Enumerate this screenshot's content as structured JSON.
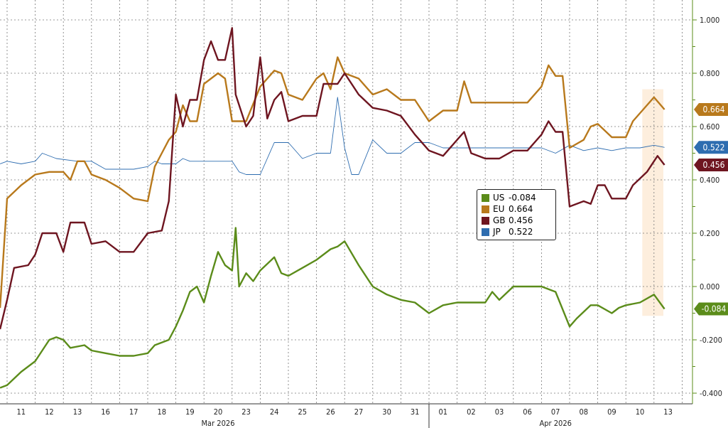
{
  "chart_data": {
    "type": "line",
    "title": "",
    "xlabel": "",
    "ylabel": "",
    "ylim": [
      -0.4,
      1.0
    ],
    "y_ticks": [
      "1.000",
      "0.800",
      "0.600",
      "0.400",
      "0.200",
      "0.000",
      "-0.200",
      "-0.400"
    ],
    "y_tick_values": [
      1.0,
      0.8,
      0.6,
      0.4,
      0.2,
      0.0,
      -0.2,
      -0.4
    ],
    "y_axis_side": "right",
    "grid": true,
    "legend_placement": "center-right",
    "x_days": [
      "03-11",
      "03-12",
      "03-13",
      "03-16",
      "03-17",
      "03-18",
      "03-19",
      "03-20",
      "03-23",
      "03-24",
      "03-25",
      "03-26",
      "03-27",
      "03-30",
      "03-31",
      "04-01",
      "04-02",
      "04-03",
      "04-06",
      "04-07",
      "04-08",
      "04-09",
      "04-10",
      "04-13"
    ],
    "x_tick_labels": [
      "11",
      "12",
      "13",
      "16",
      "17",
      "18",
      "19",
      "20",
      "23",
      "24",
      "25",
      "26",
      "27",
      "30",
      "31",
      "01",
      "02",
      "03",
      "06",
      "07",
      "08",
      "09",
      "10",
      "13"
    ],
    "months": [
      {
        "label": "Mar 2026",
        "from": "03-11",
        "to": "03-31"
      },
      {
        "label": "Apr 2026",
        "from": "04-01",
        "to": "04-13"
      }
    ],
    "highlight": {
      "from": "04-10 14:00",
      "to": "04-13 08:00",
      "ymin": -0.11,
      "ymax": 0.74,
      "color": "#fdeedd"
    },
    "series": [
      {
        "name": "US",
        "last": "-0.084",
        "color": "#5b8c1a",
        "width": 2.4,
        "points": [
          [
            "03-10 18:00",
            -0.38
          ],
          [
            "03-11 00:00",
            -0.37
          ],
          [
            "03-11 12:00",
            -0.32
          ],
          [
            "03-12 00:00",
            -0.28
          ],
          [
            "03-12 06:00",
            -0.24
          ],
          [
            "03-12 12:00",
            -0.2
          ],
          [
            "03-12 18:00",
            -0.19
          ],
          [
            "03-13 00:00",
            -0.2
          ],
          [
            "03-13 06:00",
            -0.23
          ],
          [
            "03-13 18:00",
            -0.22
          ],
          [
            "03-16 00:00",
            -0.24
          ],
          [
            "03-16 12:00",
            -0.25
          ],
          [
            "03-17 00:00",
            -0.26
          ],
          [
            "03-17 12:00",
            -0.26
          ],
          [
            "03-18 00:00",
            -0.25
          ],
          [
            "03-18 06:00",
            -0.22
          ],
          [
            "03-18 18:00",
            -0.2
          ],
          [
            "03-19 00:00",
            -0.15
          ],
          [
            "03-19 06:00",
            -0.09
          ],
          [
            "03-19 12:00",
            -0.02
          ],
          [
            "03-19 18:00",
            0.0
          ],
          [
            "03-20 00:00",
            -0.06
          ],
          [
            "03-20 06:00",
            0.04
          ],
          [
            "03-20 12:00",
            0.13
          ],
          [
            "03-20 18:00",
            0.08
          ],
          [
            "03-23 00:00",
            0.06
          ],
          [
            "03-23 03:00",
            0.22
          ],
          [
            "03-23 06:00",
            0.0
          ],
          [
            "03-23 12:00",
            0.05
          ],
          [
            "03-23 18:00",
            0.02
          ],
          [
            "03-24 00:00",
            0.06
          ],
          [
            "03-24 12:00",
            0.11
          ],
          [
            "03-24 18:00",
            0.05
          ],
          [
            "03-25 00:00",
            0.04
          ],
          [
            "03-25 12:00",
            0.07
          ],
          [
            "03-26 00:00",
            0.1
          ],
          [
            "03-26 12:00",
            0.14
          ],
          [
            "03-26 18:00",
            0.15
          ],
          [
            "03-27 00:00",
            0.17
          ],
          [
            "03-27 12:00",
            0.08
          ],
          [
            "03-30 00:00",
            0.0
          ],
          [
            "03-30 12:00",
            -0.03
          ],
          [
            "03-31 00:00",
            -0.05
          ],
          [
            "03-31 12:00",
            -0.06
          ],
          [
            "04-01 00:00",
            -0.1
          ],
          [
            "04-01 12:00",
            -0.07
          ],
          [
            "04-02 00:00",
            -0.06
          ],
          [
            "04-02 12:00",
            -0.06
          ],
          [
            "04-03 00:00",
            -0.06
          ],
          [
            "04-03 06:00",
            -0.02
          ],
          [
            "04-03 12:00",
            -0.05
          ],
          [
            "04-06 00:00",
            0.0
          ],
          [
            "04-06 12:00",
            0.0
          ],
          [
            "04-07 00:00",
            0.0
          ],
          [
            "04-07 12:00",
            -0.02
          ],
          [
            "04-08 00:00",
            -0.15
          ],
          [
            "04-08 06:00",
            -0.12
          ],
          [
            "04-08 18:00",
            -0.07
          ],
          [
            "04-09 00:00",
            -0.07
          ],
          [
            "04-09 12:00",
            -0.1
          ],
          [
            "04-09 18:00",
            -0.08
          ],
          [
            "04-10 00:00",
            -0.07
          ],
          [
            "04-10 12:00",
            -0.06
          ],
          [
            "04-13 00:00",
            -0.03
          ],
          [
            "04-13 09:00",
            -0.084
          ]
        ]
      },
      {
        "name": "EU",
        "last": "0.664",
        "color": "#b8791c",
        "width": 2.4,
        "points": [
          [
            "03-10 18:00",
            -0.08
          ],
          [
            "03-11 00:00",
            0.33
          ],
          [
            "03-11 12:00",
            0.38
          ],
          [
            "03-12 00:00",
            0.42
          ],
          [
            "03-12 12:00",
            0.43
          ],
          [
            "03-13 00:00",
            0.43
          ],
          [
            "03-13 06:00",
            0.4
          ],
          [
            "03-13 12:00",
            0.47
          ],
          [
            "03-13 18:00",
            0.47
          ],
          [
            "03-16 00:00",
            0.42
          ],
          [
            "03-16 12:00",
            0.4
          ],
          [
            "03-17 00:00",
            0.37
          ],
          [
            "03-17 12:00",
            0.33
          ],
          [
            "03-18 00:00",
            0.32
          ],
          [
            "03-18 06:00",
            0.45
          ],
          [
            "03-18 12:00",
            0.5
          ],
          [
            "03-18 18:00",
            0.55
          ],
          [
            "03-19 00:00",
            0.58
          ],
          [
            "03-19 06:00",
            0.68
          ],
          [
            "03-19 12:00",
            0.62
          ],
          [
            "03-19 18:00",
            0.62
          ],
          [
            "03-20 00:00",
            0.76
          ],
          [
            "03-20 12:00",
            0.8
          ],
          [
            "03-20 18:00",
            0.78
          ],
          [
            "03-23 00:00",
            0.62
          ],
          [
            "03-23 12:00",
            0.62
          ],
          [
            "03-24 00:00",
            0.75
          ],
          [
            "03-24 12:00",
            0.81
          ],
          [
            "03-24 18:00",
            0.8
          ],
          [
            "03-25 00:00",
            0.72
          ],
          [
            "03-25 12:00",
            0.7
          ],
          [
            "03-26 00:00",
            0.78
          ],
          [
            "03-26 06:00",
            0.8
          ],
          [
            "03-26 12:00",
            0.74
          ],
          [
            "03-26 18:00",
            0.86
          ],
          [
            "03-27 00:00",
            0.8
          ],
          [
            "03-27 12:00",
            0.78
          ],
          [
            "03-30 00:00",
            0.72
          ],
          [
            "03-30 12:00",
            0.74
          ],
          [
            "03-31 00:00",
            0.7
          ],
          [
            "03-31 12:00",
            0.7
          ],
          [
            "04-01 00:00",
            0.62
          ],
          [
            "04-01 12:00",
            0.66
          ],
          [
            "04-02 00:00",
            0.66
          ],
          [
            "04-02 06:00",
            0.77
          ],
          [
            "04-02 12:00",
            0.69
          ],
          [
            "04-03 00:00",
            0.69
          ],
          [
            "04-06 12:00",
            0.69
          ],
          [
            "04-07 00:00",
            0.75
          ],
          [
            "04-07 06:00",
            0.83
          ],
          [
            "04-07 12:00",
            0.79
          ],
          [
            "04-07 18:00",
            0.79
          ],
          [
            "04-08 00:00",
            0.52
          ],
          [
            "04-08 12:00",
            0.55
          ],
          [
            "04-08 18:00",
            0.6
          ],
          [
            "04-09 00:00",
            0.61
          ],
          [
            "04-09 12:00",
            0.56
          ],
          [
            "04-10 00:00",
            0.56
          ],
          [
            "04-10 06:00",
            0.62
          ],
          [
            "04-10 18:00",
            0.68
          ],
          [
            "04-13 00:00",
            0.71
          ],
          [
            "04-13 09:00",
            0.664
          ]
        ]
      },
      {
        "name": "GB",
        "last": "0.456",
        "color": "#6e1520",
        "width": 2.4,
        "points": [
          [
            "03-10 18:00",
            -0.16
          ],
          [
            "03-11 00:00",
            -0.05
          ],
          [
            "03-11 06:00",
            0.07
          ],
          [
            "03-11 18:00",
            0.08
          ],
          [
            "03-12 00:00",
            0.12
          ],
          [
            "03-12 06:00",
            0.2
          ],
          [
            "03-12 18:00",
            0.2
          ],
          [
            "03-13 00:00",
            0.13
          ],
          [
            "03-13 06:00",
            0.24
          ],
          [
            "03-13 18:00",
            0.24
          ],
          [
            "03-16 00:00",
            0.16
          ],
          [
            "03-16 12:00",
            0.17
          ],
          [
            "03-17 00:00",
            0.13
          ],
          [
            "03-17 12:00",
            0.13
          ],
          [
            "03-18 00:00",
            0.2
          ],
          [
            "03-18 12:00",
            0.21
          ],
          [
            "03-18 18:00",
            0.32
          ],
          [
            "03-19 00:00",
            0.72
          ],
          [
            "03-19 06:00",
            0.6
          ],
          [
            "03-19 12:00",
            0.7
          ],
          [
            "03-19 18:00",
            0.7
          ],
          [
            "03-20 00:00",
            0.85
          ],
          [
            "03-20 06:00",
            0.92
          ],
          [
            "03-20 12:00",
            0.85
          ],
          [
            "03-20 18:00",
            0.85
          ],
          [
            "03-23 00:00",
            0.97
          ],
          [
            "03-23 03:00",
            0.72
          ],
          [
            "03-23 12:00",
            0.6
          ],
          [
            "03-23 18:00",
            0.64
          ],
          [
            "03-24 00:00",
            0.86
          ],
          [
            "03-24 06:00",
            0.63
          ],
          [
            "03-24 12:00",
            0.7
          ],
          [
            "03-24 18:00",
            0.73
          ],
          [
            "03-25 00:00",
            0.62
          ],
          [
            "03-25 12:00",
            0.64
          ],
          [
            "03-26 00:00",
            0.64
          ],
          [
            "03-26 06:00",
            0.76
          ],
          [
            "03-26 18:00",
            0.76
          ],
          [
            "03-27 00:00",
            0.8
          ],
          [
            "03-27 12:00",
            0.72
          ],
          [
            "03-30 00:00",
            0.67
          ],
          [
            "03-30 12:00",
            0.66
          ],
          [
            "03-31 00:00",
            0.64
          ],
          [
            "03-31 12:00",
            0.57
          ],
          [
            "04-01 00:00",
            0.51
          ],
          [
            "04-01 12:00",
            0.49
          ],
          [
            "04-02 00:00",
            0.55
          ],
          [
            "04-02 06:00",
            0.58
          ],
          [
            "04-02 12:00",
            0.5
          ],
          [
            "04-03 00:00",
            0.48
          ],
          [
            "04-03 12:00",
            0.48
          ],
          [
            "04-06 00:00",
            0.51
          ],
          [
            "04-06 12:00",
            0.51
          ],
          [
            "04-07 00:00",
            0.57
          ],
          [
            "04-07 06:00",
            0.62
          ],
          [
            "04-07 12:00",
            0.58
          ],
          [
            "04-07 18:00",
            0.58
          ],
          [
            "04-08 00:00",
            0.3
          ],
          [
            "04-08 12:00",
            0.32
          ],
          [
            "04-08 18:00",
            0.31
          ],
          [
            "04-09 00:00",
            0.38
          ],
          [
            "04-09 06:00",
            0.38
          ],
          [
            "04-09 12:00",
            0.33
          ],
          [
            "04-10 00:00",
            0.33
          ],
          [
            "04-10 06:00",
            0.38
          ],
          [
            "04-10 18:00",
            0.43
          ],
          [
            "04-13 00:00",
            0.47
          ],
          [
            "04-13 03:00",
            0.49
          ],
          [
            "04-13 09:00",
            0.456
          ]
        ]
      },
      {
        "name": "JP",
        "last": "0.522",
        "color": "#2e6db0",
        "width": 0.9,
        "points": [
          [
            "03-10 18:00",
            0.46
          ],
          [
            "03-11 00:00",
            0.47
          ],
          [
            "03-11 12:00",
            0.46
          ],
          [
            "03-12 00:00",
            0.47
          ],
          [
            "03-12 06:00",
            0.5
          ],
          [
            "03-12 18:00",
            0.48
          ],
          [
            "03-13 12:00",
            0.47
          ],
          [
            "03-16 00:00",
            0.47
          ],
          [
            "03-16 12:00",
            0.44
          ],
          [
            "03-17 00:00",
            0.44
          ],
          [
            "03-17 12:00",
            0.44
          ],
          [
            "03-18 00:00",
            0.45
          ],
          [
            "03-18 06:00",
            0.47
          ],
          [
            "03-18 12:00",
            0.46
          ],
          [
            "03-19 00:00",
            0.46
          ],
          [
            "03-19 06:00",
            0.48
          ],
          [
            "03-19 12:00",
            0.47
          ],
          [
            "03-20 12:00",
            0.47
          ],
          [
            "03-23 00:00",
            0.47
          ],
          [
            "03-23 06:00",
            0.43
          ],
          [
            "03-23 12:00",
            0.42
          ],
          [
            "03-24 00:00",
            0.42
          ],
          [
            "03-24 06:00",
            0.48
          ],
          [
            "03-24 12:00",
            0.54
          ],
          [
            "03-25 00:00",
            0.54
          ],
          [
            "03-25 12:00",
            0.48
          ],
          [
            "03-26 00:00",
            0.5
          ],
          [
            "03-26 12:00",
            0.5
          ],
          [
            "03-26 18:00",
            0.71
          ],
          [
            "03-27 00:00",
            0.52
          ],
          [
            "03-27 06:00",
            0.42
          ],
          [
            "03-27 12:00",
            0.42
          ],
          [
            "03-30 00:00",
            0.55
          ],
          [
            "03-30 12:00",
            0.5
          ],
          [
            "03-31 00:00",
            0.5
          ],
          [
            "03-31 12:00",
            0.54
          ],
          [
            "04-01 00:00",
            0.54
          ],
          [
            "04-01 12:00",
            0.52
          ],
          [
            "04-02 00:00",
            0.52
          ],
          [
            "04-02 12:00",
            0.52
          ],
          [
            "04-03 00:00",
            0.52
          ],
          [
            "04-06 00:00",
            0.52
          ],
          [
            "04-06 12:00",
            0.52
          ],
          [
            "04-07 00:00",
            0.52
          ],
          [
            "04-07 12:00",
            0.5
          ],
          [
            "04-08 00:00",
            0.53
          ],
          [
            "04-08 12:00",
            0.51
          ],
          [
            "04-09 00:00",
            0.52
          ],
          [
            "04-09 12:00",
            0.51
          ],
          [
            "04-10 00:00",
            0.52
          ],
          [
            "04-10 12:00",
            0.52
          ],
          [
            "04-13 00:00",
            0.53
          ],
          [
            "04-13 09:00",
            0.522
          ]
        ]
      }
    ]
  }
}
